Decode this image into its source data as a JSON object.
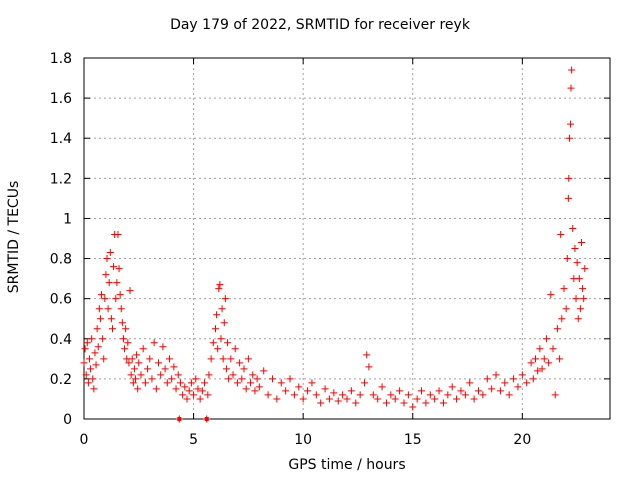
{
  "chart_data": {
    "type": "scatter",
    "title": "Day 179 of 2022, SRMTID for receiver reyk",
    "xlabel": "GPS time / hours",
    "ylabel": "SRMTID / TECUs",
    "xlim": [
      0,
      24
    ],
    "ylim": [
      0,
      1.8
    ],
    "xticks": [
      0,
      5,
      10,
      15,
      20
    ],
    "yticks": [
      0,
      0.2,
      0.4,
      0.6,
      0.8,
      1,
      1.2,
      1.4,
      1.6,
      1.8
    ],
    "xtick_labels": [
      "0",
      "5",
      "10",
      "15",
      "20"
    ],
    "ytick_labels": [
      "0",
      "0.2",
      "0.4",
      "0.6",
      "0.8",
      "1",
      "1.2",
      "1.4",
      "1.6",
      "1.8"
    ],
    "grid": true,
    "marker": "+",
    "colors": {
      "series": "#ff0000",
      "grid": "#a0a0a0",
      "axes": "#000000"
    },
    "series": [
      {
        "name": "SRMTID",
        "points": [
          [
            0.0,
            0.28
          ],
          [
            0.05,
            0.35
          ],
          [
            0.1,
            0.22
          ],
          [
            0.15,
            0.38
          ],
          [
            0.2,
            0.18
          ],
          [
            0.25,
            0.3
          ],
          [
            0.3,
            0.25
          ],
          [
            0.35,
            0.4
          ],
          [
            0.4,
            0.2
          ],
          [
            0.45,
            0.15
          ],
          [
            0.5,
            0.33
          ],
          [
            0.55,
            0.27
          ],
          [
            0.6,
            0.45
          ],
          [
            0.65,
            0.36
          ],
          [
            0.7,
            0.55
          ],
          [
            0.75,
            0.5
          ],
          [
            0.8,
            0.62
          ],
          [
            0.85,
            0.4
          ],
          [
            0.9,
            0.3
          ],
          [
            0.95,
            0.6
          ],
          [
            1.0,
            0.72
          ],
          [
            1.05,
            0.8
          ],
          [
            1.1,
            0.55
          ],
          [
            1.15,
            0.68
          ],
          [
            1.2,
            0.83
          ],
          [
            1.25,
            0.5
          ],
          [
            1.3,
            0.45
          ],
          [
            1.35,
            0.76
          ],
          [
            1.4,
            0.92
          ],
          [
            1.45,
            0.6
          ],
          [
            1.5,
            0.68
          ],
          [
            1.55,
            0.92
          ],
          [
            1.6,
            0.75
          ],
          [
            1.65,
            0.62
          ],
          [
            1.7,
            0.55
          ],
          [
            1.75,
            0.48
          ],
          [
            1.8,
            0.4
          ],
          [
            1.85,
            0.35
          ],
          [
            1.9,
            0.45
          ],
          [
            1.95,
            0.3
          ],
          [
            2.0,
            0.38
          ],
          [
            2.05,
            0.28
          ],
          [
            2.1,
            0.64
          ],
          [
            2.15,
            0.22
          ],
          [
            2.2,
            0.3
          ],
          [
            2.25,
            0.18
          ],
          [
            2.3,
            0.25
          ],
          [
            2.35,
            0.2
          ],
          [
            2.4,
            0.32
          ],
          [
            2.45,
            0.15
          ],
          [
            2.5,
            0.28
          ],
          [
            2.6,
            0.22
          ],
          [
            2.7,
            0.35
          ],
          [
            2.8,
            0.18
          ],
          [
            2.9,
            0.25
          ],
          [
            3.0,
            0.3
          ],
          [
            3.1,
            0.2
          ],
          [
            3.2,
            0.38
          ],
          [
            3.3,
            0.15
          ],
          [
            3.4,
            0.28
          ],
          [
            3.5,
            0.22
          ],
          [
            3.6,
            0.36
          ],
          [
            3.7,
            0.25
          ],
          [
            3.8,
            0.18
          ],
          [
            3.9,
            0.3
          ],
          [
            4.0,
            0.2
          ],
          [
            4.1,
            0.26
          ],
          [
            4.2,
            0.15
          ],
          [
            4.3,
            0.22
          ],
          [
            4.35,
            0.0
          ],
          [
            4.4,
            0.18
          ],
          [
            4.5,
            0.12
          ],
          [
            4.6,
            0.16
          ],
          [
            4.7,
            0.1
          ],
          [
            4.8,
            0.14
          ],
          [
            4.9,
            0.18
          ],
          [
            5.0,
            0.12
          ],
          [
            5.1,
            0.2
          ],
          [
            5.2,
            0.15
          ],
          [
            5.3,
            0.1
          ],
          [
            5.4,
            0.14
          ],
          [
            5.5,
            0.18
          ],
          [
            5.6,
            0.0
          ],
          [
            5.65,
            0.12
          ],
          [
            5.7,
            0.22
          ],
          [
            5.8,
            0.3
          ],
          [
            5.9,
            0.38
          ],
          [
            6.0,
            0.45
          ],
          [
            6.05,
            0.52
          ],
          [
            6.1,
            0.35
          ],
          [
            6.15,
            0.65
          ],
          [
            6.2,
            0.67
          ],
          [
            6.25,
            0.4
          ],
          [
            6.3,
            0.55
          ],
          [
            6.35,
            0.3
          ],
          [
            6.4,
            0.48
          ],
          [
            6.45,
            0.6
          ],
          [
            6.5,
            0.25
          ],
          [
            6.55,
            0.38
          ],
          [
            6.6,
            0.2
          ],
          [
            6.7,
            0.3
          ],
          [
            6.8,
            0.22
          ],
          [
            6.9,
            0.35
          ],
          [
            7.0,
            0.18
          ],
          [
            7.1,
            0.28
          ],
          [
            7.2,
            0.2
          ],
          [
            7.3,
            0.25
          ],
          [
            7.4,
            0.15
          ],
          [
            7.5,
            0.3
          ],
          [
            7.6,
            0.18
          ],
          [
            7.7,
            0.22
          ],
          [
            7.8,
            0.14
          ],
          [
            7.9,
            0.2
          ],
          [
            8.0,
            0.16
          ],
          [
            8.2,
            0.24
          ],
          [
            8.4,
            0.12
          ],
          [
            8.6,
            0.2
          ],
          [
            8.8,
            0.1
          ],
          [
            9.0,
            0.18
          ],
          [
            9.2,
            0.14
          ],
          [
            9.4,
            0.2
          ],
          [
            9.6,
            0.12
          ],
          [
            9.8,
            0.16
          ],
          [
            10.0,
            0.1
          ],
          [
            10.2,
            0.14
          ],
          [
            10.4,
            0.18
          ],
          [
            10.6,
            0.12
          ],
          [
            10.8,
            0.08
          ],
          [
            11.0,
            0.15
          ],
          [
            11.2,
            0.1
          ],
          [
            11.4,
            0.13
          ],
          [
            11.6,
            0.09
          ],
          [
            11.8,
            0.12
          ],
          [
            12.0,
            0.1
          ],
          [
            12.2,
            0.14
          ],
          [
            12.4,
            0.08
          ],
          [
            12.6,
            0.12
          ],
          [
            12.8,
            0.18
          ],
          [
            12.9,
            0.32
          ],
          [
            13.0,
            0.26
          ],
          [
            13.2,
            0.12
          ],
          [
            13.4,
            0.1
          ],
          [
            13.6,
            0.16
          ],
          [
            13.8,
            0.08
          ],
          [
            14.0,
            0.12
          ],
          [
            14.2,
            0.1
          ],
          [
            14.4,
            0.14
          ],
          [
            14.6,
            0.08
          ],
          [
            14.8,
            0.12
          ],
          [
            15.0,
            0.06
          ],
          [
            15.2,
            0.1
          ],
          [
            15.4,
            0.14
          ],
          [
            15.6,
            0.08
          ],
          [
            15.8,
            0.12
          ],
          [
            16.0,
            0.1
          ],
          [
            16.2,
            0.14
          ],
          [
            16.4,
            0.08
          ],
          [
            16.6,
            0.12
          ],
          [
            16.8,
            0.16
          ],
          [
            17.0,
            0.1
          ],
          [
            17.2,
            0.14
          ],
          [
            17.4,
            0.12
          ],
          [
            17.6,
            0.18
          ],
          [
            17.8,
            0.1
          ],
          [
            18.0,
            0.14
          ],
          [
            18.2,
            0.12
          ],
          [
            18.4,
            0.2
          ],
          [
            18.6,
            0.15
          ],
          [
            18.8,
            0.22
          ],
          [
            19.0,
            0.14
          ],
          [
            19.2,
            0.18
          ],
          [
            19.4,
            0.12
          ],
          [
            19.6,
            0.2
          ],
          [
            19.8,
            0.16
          ],
          [
            20.0,
            0.22
          ],
          [
            20.2,
            0.18
          ],
          [
            20.4,
            0.28
          ],
          [
            20.5,
            0.2
          ],
          [
            20.6,
            0.3
          ],
          [
            20.7,
            0.24
          ],
          [
            20.8,
            0.35
          ],
          [
            20.9,
            0.25
          ],
          [
            21.0,
            0.3
          ],
          [
            21.1,
            0.4
          ],
          [
            21.2,
            0.28
          ],
          [
            21.3,
            0.62
          ],
          [
            21.4,
            0.35
          ],
          [
            21.5,
            0.12
          ],
          [
            21.6,
            0.45
          ],
          [
            21.7,
            0.3
          ],
          [
            21.75,
            0.92
          ],
          [
            21.8,
            0.5
          ],
          [
            21.9,
            0.65
          ],
          [
            22.0,
            0.55
          ],
          [
            22.05,
            0.8
          ],
          [
            22.1,
            1.1
          ],
          [
            22.12,
            1.2
          ],
          [
            22.15,
            1.4
          ],
          [
            22.2,
            1.47
          ],
          [
            22.22,
            1.65
          ],
          [
            22.25,
            1.74
          ],
          [
            22.3,
            0.95
          ],
          [
            22.35,
            0.7
          ],
          [
            22.4,
            0.85
          ],
          [
            22.45,
            0.6
          ],
          [
            22.5,
            0.78
          ],
          [
            22.55,
            0.5
          ],
          [
            22.6,
            0.7
          ],
          [
            22.65,
            0.55
          ],
          [
            22.7,
            0.88
          ],
          [
            22.75,
            0.65
          ],
          [
            22.8,
            0.6
          ],
          [
            22.85,
            0.75
          ]
        ]
      }
    ],
    "offscale_markers": [
      4.35,
      5.6
    ]
  }
}
